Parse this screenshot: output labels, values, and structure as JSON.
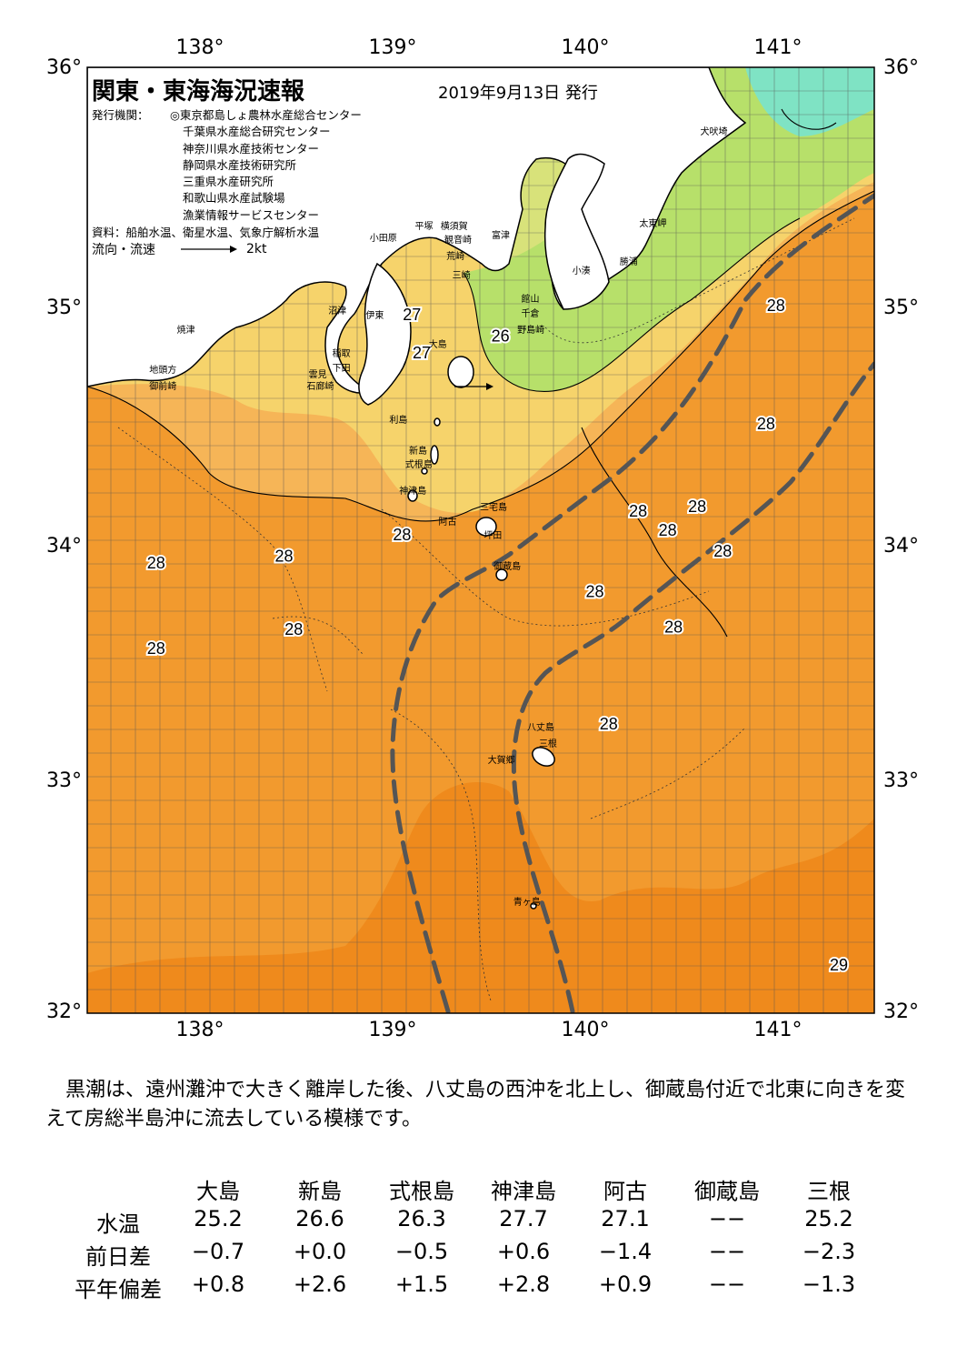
{
  "header": {
    "title": "関東・東海海況速報",
    "date": "2019年9月13日 発行",
    "agency_label": "発行機関：",
    "agencies": [
      "◎東京都島しょ農林水産総合センター",
      "千葉県水産総合研究センター",
      "神奈川県水産技術センター",
      "静岡県水産技術研究所",
      "三重県水産研究所",
      "和歌山県水産試験場",
      "漁業情報サービスセンター"
    ],
    "source": "資料：船舶水温、衛星水温、気象庁解析水温",
    "legend_label": "流向・流速",
    "legend_speed": "2kt"
  },
  "axes": {
    "lon_labels": [
      "138°",
      "139°",
      "140°",
      "141°"
    ],
    "lat_labels": [
      "36°",
      "35°",
      "34°",
      "33°",
      "32°"
    ],
    "lon_range": [
      137.5,
      141.5
    ],
    "lat_range": [
      32,
      36
    ]
  },
  "temperature_labels": [
    {
      "text": "27",
      "lon": 139.15,
      "lat": 34.93
    },
    {
      "text": "27",
      "lon": 139.2,
      "lat": 34.77
    },
    {
      "text": "26",
      "lon": 139.6,
      "lat": 34.84
    },
    {
      "text": "28",
      "lon": 141.0,
      "lat": 34.97
    },
    {
      "text": "28",
      "lon": 140.95,
      "lat": 34.47
    },
    {
      "text": "28",
      "lon": 140.3,
      "lat": 34.1
    },
    {
      "text": "28",
      "lon": 140.6,
      "lat": 34.12
    },
    {
      "text": "28",
      "lon": 140.45,
      "lat": 34.02
    },
    {
      "text": "28",
      "lon": 140.73,
      "lat": 33.93
    },
    {
      "text": "28",
      "lon": 139.1,
      "lat": 34.0
    },
    {
      "text": "28",
      "lon": 137.85,
      "lat": 33.88
    },
    {
      "text": "28",
      "lon": 138.5,
      "lat": 33.91
    },
    {
      "text": "28",
      "lon": 140.08,
      "lat": 33.76
    },
    {
      "text": "28",
      "lon": 138.55,
      "lat": 33.6
    },
    {
      "text": "28",
      "lon": 137.85,
      "lat": 33.52
    },
    {
      "text": "28",
      "lon": 140.48,
      "lat": 33.61
    },
    {
      "text": "28",
      "lon": 140.15,
      "lat": 33.2
    },
    {
      "text": "29",
      "lon": 141.32,
      "lat": 32.18
    }
  ],
  "place_names": [
    {
      "text": "犬吠埼",
      "lon": 140.68,
      "lat": 35.74
    },
    {
      "text": "太東岬",
      "lon": 140.37,
      "lat": 35.35
    },
    {
      "text": "勝浦",
      "lon": 140.27,
      "lat": 35.19
    },
    {
      "text": "小湊",
      "lon": 140.03,
      "lat": 35.15
    },
    {
      "text": "小田原",
      "lon": 139.0,
      "lat": 35.29
    },
    {
      "text": "平塚",
      "lon": 139.23,
      "lat": 35.34
    },
    {
      "text": "横須賀",
      "lon": 139.36,
      "lat": 35.34
    },
    {
      "text": "観音崎",
      "lon": 139.38,
      "lat": 35.28
    },
    {
      "text": "富津",
      "lon": 139.62,
      "lat": 35.3
    },
    {
      "text": "荒崎",
      "lon": 139.39,
      "lat": 35.21
    },
    {
      "text": "三崎",
      "lon": 139.42,
      "lat": 35.13
    },
    {
      "text": "館山",
      "lon": 139.77,
      "lat": 35.03
    },
    {
      "text": "千倉",
      "lon": 139.77,
      "lat": 34.97
    },
    {
      "text": "野島崎",
      "lon": 139.75,
      "lat": 34.9
    },
    {
      "text": "沼津",
      "lon": 138.79,
      "lat": 34.98
    },
    {
      "text": "伊東",
      "lon": 138.98,
      "lat": 34.96
    },
    {
      "text": "焼津",
      "lon": 138.02,
      "lat": 34.9
    },
    {
      "text": "稲取",
      "lon": 138.81,
      "lat": 34.8
    },
    {
      "text": "下田",
      "lon": 138.81,
      "lat": 34.74
    },
    {
      "text": "大島",
      "lon": 139.3,
      "lat": 34.84
    },
    {
      "text": "地頭方",
      "lon": 137.88,
      "lat": 34.73
    },
    {
      "text": "御前崎",
      "lon": 137.88,
      "lat": 34.66
    },
    {
      "text": "雲見",
      "lon": 138.69,
      "lat": 34.71
    },
    {
      "text": "石廊崎",
      "lon": 138.68,
      "lat": 34.66
    },
    {
      "text": "利島",
      "lon": 139.1,
      "lat": 34.52
    },
    {
      "text": "新島",
      "lon": 139.2,
      "lat": 34.39
    },
    {
      "text": "式根島",
      "lon": 139.18,
      "lat": 34.33
    },
    {
      "text": "神津島",
      "lon": 139.15,
      "lat": 34.22
    },
    {
      "text": "三宅島",
      "lon": 139.56,
      "lat": 34.15
    },
    {
      "text": "阿古",
      "lon": 139.35,
      "lat": 34.09
    },
    {
      "text": "坪田",
      "lon": 139.58,
      "lat": 34.03
    },
    {
      "text": "御蔵島",
      "lon": 139.63,
      "lat": 33.9
    },
    {
      "text": "八丈島",
      "lon": 139.8,
      "lat": 33.22
    },
    {
      "text": "三根",
      "lon": 139.86,
      "lat": 33.15
    },
    {
      "text": "大賀郷",
      "lon": 139.6,
      "lat": 33.08
    },
    {
      "text": "青ヶ島",
      "lon": 139.73,
      "lat": 32.48
    }
  ],
  "summary": "黒潮は、遠州灘沖で大きく離岸した後、八丈島の西沖を北上し、御蔵島付近で北東に向きを変えて房総半島沖に流去している模様です。",
  "table": {
    "columns": [
      "大島",
      "新島",
      "式根島",
      "神津島",
      "阿古",
      "御蔵島",
      "三根"
    ],
    "rows": [
      {
        "label": "水温",
        "values": [
          "25.2",
          "26.6",
          "26.3",
          "27.7",
          "27.1",
          "−−",
          "25.2"
        ]
      },
      {
        "label": "前日差",
        "values": [
          "−0.7",
          "+0.0",
          "−0.5",
          "+0.6",
          "−1.4",
          "−−",
          "−2.3"
        ]
      },
      {
        "label": "平年偏差",
        "values": [
          "+0.8",
          "+2.6",
          "+1.5",
          "+2.8",
          "+0.9",
          "−−",
          "−1.3"
        ]
      }
    ]
  },
  "colors": {
    "warm_orange": "#f29a2e",
    "deep_orange": "#ef8a1c",
    "light_orange": "#f6b557",
    "yellow": "#f6d36b",
    "yellow_green": "#d8e27a",
    "green": "#b7e06a",
    "aqua": "#7fe3c4",
    "land": "#ffffff",
    "kuroshio_axis": "#555555"
  }
}
